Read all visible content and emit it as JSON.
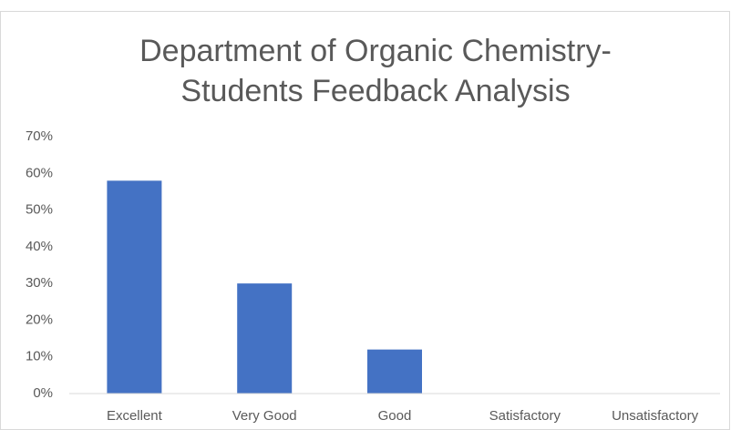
{
  "chart_data": {
    "type": "bar",
    "title": [
      "Department of Organic Chemistry-",
      "Students Feedback Analysis"
    ],
    "categories": [
      "Excellent",
      "Very Good",
      "Good",
      "Satisfactory",
      "Unsatisfactory"
    ],
    "values": [
      58,
      30,
      12,
      0,
      0
    ],
    "color": "#4472c4",
    "ylim": [
      0,
      70
    ],
    "yticks": [
      {
        "value": 0,
        "label": "0%"
      },
      {
        "value": 10,
        "label": "10%"
      },
      {
        "value": 20,
        "label": "20%"
      },
      {
        "value": 30,
        "label": "30%"
      },
      {
        "value": 40,
        "label": "40%"
      },
      {
        "value": 50,
        "label": "50%"
      },
      {
        "value": 60,
        "label": "60%"
      },
      {
        "value": 70,
        "label": "70%"
      }
    ],
    "grid": false
  }
}
